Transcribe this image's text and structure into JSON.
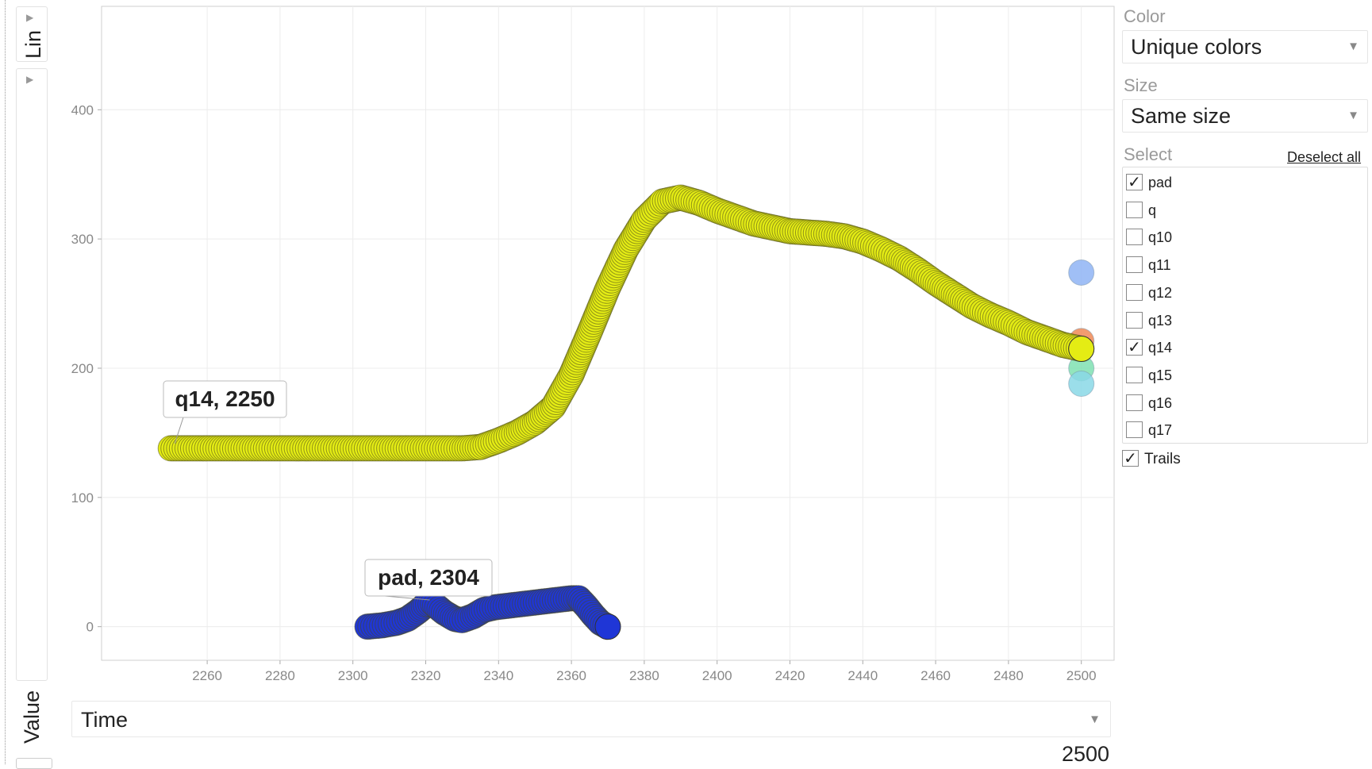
{
  "left_tab": {
    "label": "Lin",
    "arrow": "▶"
  },
  "y_selector": {
    "label": "Value",
    "arrow": "▶"
  },
  "x_selector": {
    "label": "Time",
    "dropdown_icon": "▼"
  },
  "current_time": "2500",
  "panel": {
    "color": {
      "label": "Color",
      "value": "Unique colors",
      "dropdown_icon": "▼"
    },
    "size": {
      "label": "Size",
      "value": "Same size",
      "dropdown_icon": "▼"
    },
    "select": {
      "label": "Select",
      "deselect_label": "Deselect all",
      "items": [
        {
          "label": "pad",
          "checked": true
        },
        {
          "label": "q",
          "checked": false
        },
        {
          "label": "q10",
          "checked": false
        },
        {
          "label": "q11",
          "checked": false
        },
        {
          "label": "q12",
          "checked": false
        },
        {
          "label": "q13",
          "checked": false
        },
        {
          "label": "q14",
          "checked": true
        },
        {
          "label": "q15",
          "checked": false
        },
        {
          "label": "q16",
          "checked": false
        },
        {
          "label": "q17",
          "checked": false
        }
      ]
    },
    "trails": {
      "label": "Trails",
      "checked": true
    }
  },
  "chart_data": {
    "type": "scatter",
    "xlim": [
      2231,
      2509
    ],
    "ylim": [
      -26,
      480
    ],
    "x_ticks": [
      2260,
      2280,
      2300,
      2320,
      2340,
      2360,
      2380,
      2400,
      2420,
      2440,
      2460,
      2480,
      2500
    ],
    "y_ticks": [
      0,
      100,
      200,
      300,
      400
    ],
    "grid": true,
    "series": [
      {
        "name": "q14",
        "color": "#e4ec14",
        "trail": [
          [
            2250,
            138
          ],
          [
            2260,
            138
          ],
          [
            2270,
            138
          ],
          [
            2280,
            138
          ],
          [
            2290,
            138
          ],
          [
            2300,
            138
          ],
          [
            2310,
            138
          ],
          [
            2320,
            138
          ],
          [
            2330,
            138
          ],
          [
            2335,
            139
          ],
          [
            2340,
            144
          ],
          [
            2345,
            150
          ],
          [
            2350,
            158
          ],
          [
            2355,
            170
          ],
          [
            2360,
            195
          ],
          [
            2365,
            228
          ],
          [
            2370,
            262
          ],
          [
            2375,
            292
          ],
          [
            2380,
            315
          ],
          [
            2385,
            329
          ],
          [
            2390,
            332
          ],
          [
            2395,
            328
          ],
          [
            2400,
            322
          ],
          [
            2405,
            317
          ],
          [
            2410,
            312
          ],
          [
            2415,
            309
          ],
          [
            2420,
            306
          ],
          [
            2425,
            305
          ],
          [
            2430,
            304
          ],
          [
            2435,
            302
          ],
          [
            2440,
            298
          ],
          [
            2445,
            292
          ],
          [
            2450,
            285
          ],
          [
            2455,
            276
          ],
          [
            2460,
            266
          ],
          [
            2465,
            257
          ],
          [
            2470,
            248
          ],
          [
            2475,
            241
          ],
          [
            2480,
            235
          ],
          [
            2485,
            228
          ],
          [
            2490,
            223
          ],
          [
            2495,
            218
          ],
          [
            2500,
            215
          ]
        ],
        "label": "q14, 2250",
        "label_anchor": [
          2250,
          138
        ]
      },
      {
        "name": "pad",
        "color": "#1f36d6",
        "trail": [
          [
            2304,
            0
          ],
          [
            2308,
            1
          ],
          [
            2312,
            3
          ],
          [
            2315,
            6
          ],
          [
            2318,
            12
          ],
          [
            2320,
            17
          ],
          [
            2322,
            18
          ],
          [
            2325,
            11
          ],
          [
            2328,
            6
          ],
          [
            2330,
            5
          ],
          [
            2333,
            8
          ],
          [
            2336,
            13
          ],
          [
            2339,
            15
          ],
          [
            2342,
            16
          ],
          [
            2345,
            17
          ],
          [
            2348,
            18
          ],
          [
            2351,
            19
          ],
          [
            2354,
            20
          ],
          [
            2357,
            21
          ],
          [
            2360,
            22
          ],
          [
            2362,
            22
          ],
          [
            2364,
            16
          ],
          [
            2366,
            9
          ],
          [
            2368,
            3
          ],
          [
            2370,
            0
          ]
        ],
        "label": "pad, 2304",
        "label_anchor": [
          2320,
          17
        ]
      }
    ],
    "background_points": [
      {
        "x": 2500,
        "y": 274,
        "color": "#8fb4f5"
      },
      {
        "x": 2500,
        "y": 221,
        "color": "#f08a56"
      },
      {
        "x": 2500,
        "y": 200,
        "color": "#7fe0b2"
      },
      {
        "x": 2500,
        "y": 188,
        "color": "#8ad8e6"
      }
    ]
  }
}
